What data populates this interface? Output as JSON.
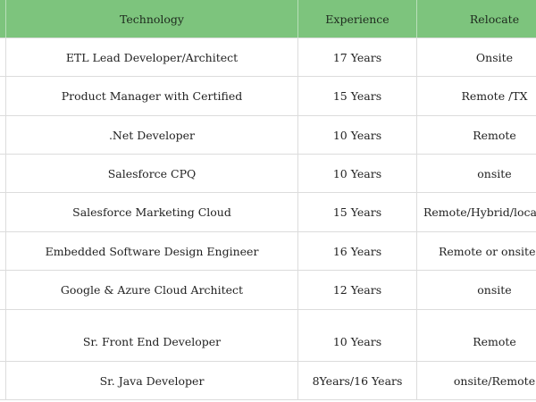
{
  "table": {
    "headers": {
      "technology": "Technology",
      "experience": "Experience",
      "relocate": "Relocate"
    },
    "rows": [
      {
        "technology": "ETL Lead Developer/Architect",
        "experience": "17 Years",
        "relocate": "Onsite"
      },
      {
        "technology": "Product Manager with Certified",
        "experience": "15 Years",
        "relocate": "Remote /TX"
      },
      {
        "technology": ".Net Developer",
        "experience": "10 Years",
        "relocate": "Remote"
      },
      {
        "technology": "Salesforce CPQ",
        "experience": "10 Years",
        "relocate": "onsite"
      },
      {
        "technology": "Salesforce Marketing Cloud",
        "experience": "15 Years",
        "relocate": "Remote/Hybrid/local t"
      },
      {
        "technology": "Embedded Software Design Engineer",
        "experience": "16 Years",
        "relocate": "Remote or onsite (IA"
      },
      {
        "technology": "Google & Azure Cloud Architect",
        "experience": "12 Years",
        "relocate": "onsite"
      },
      {
        "technology": "Sr. Front End Developer",
        "experience": "10 Years",
        "relocate": "Remote"
      },
      {
        "technology": "Sr. Java Developer",
        "experience": "8Years/16 Years",
        "relocate": "onsite/Remote"
      }
    ]
  },
  "colors": {
    "header_bg": "#7dc47d",
    "grid_line": "#dcdcdc"
  }
}
